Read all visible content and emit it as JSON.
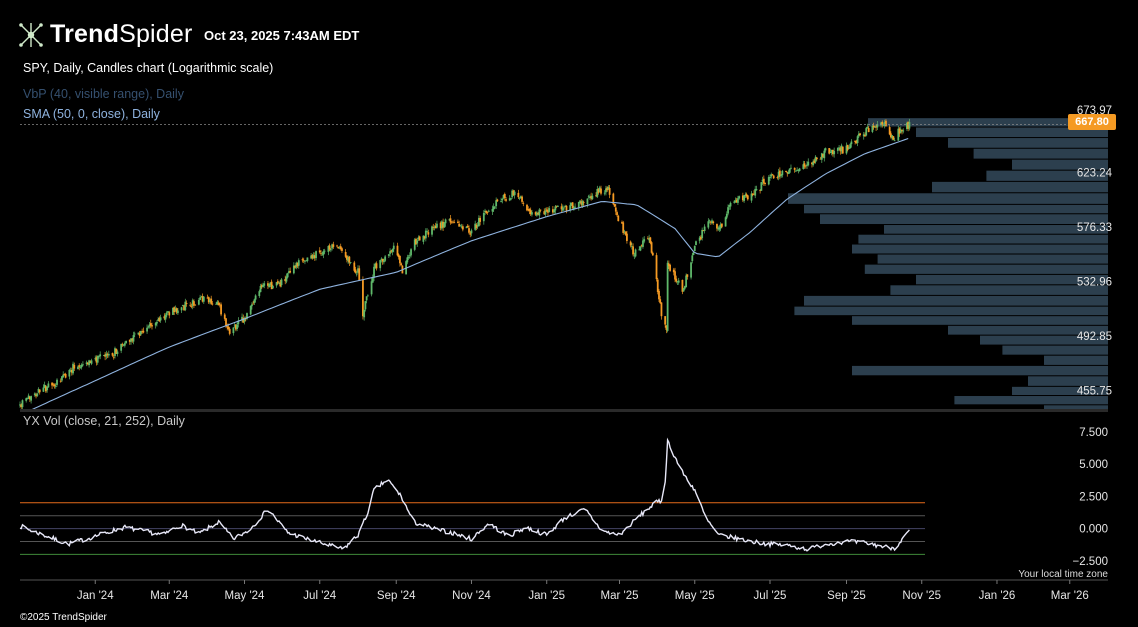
{
  "header": {
    "brand_bold": "Trend",
    "brand_light": "Spider",
    "timestamp": "Oct 23, 2025 7:43AM EDT",
    "chart_title": "SPY, Daily, Candles chart (Logarithmic scale)",
    "indicator_vbp": "VbP (40, visible range), Daily",
    "indicator_sma": "SMA (50, 0, close), Daily",
    "indicator_yxvol": "YX Vol (close, 21, 252), Daily",
    "timezone_note": "Your local time zone",
    "copyright": "©2025 TrendSpider"
  },
  "colors": {
    "background": "#000000",
    "candle_up": "#5fb86a",
    "candle_down": "#f59a23",
    "sma_line": "#8fb3df",
    "vbp_bars": "#2c3f4e",
    "vol_line": "#e8e8f8",
    "upper_band": "#e46a1a",
    "lower_band": "#3f8a3a",
    "current_price_badge": "#f59a23"
  },
  "chart_data": [
    {
      "type": "line",
      "subtype": "candlestick_log",
      "symbol": "SPY",
      "scale": "log",
      "ylim": [
        443,
        680
      ],
      "y_ticks": [
        "673.97",
        "623.24",
        "576.33",
        "532.96",
        "492.85",
        "455.75"
      ],
      "y_tick_values": [
        673.97,
        623.24,
        576.33,
        532.96,
        492.85,
        455.75
      ],
      "current_price_label": "667.80",
      "current_price": 667.8,
      "x_ticks": [
        "Jan '24",
        "Mar '24",
        "May '24",
        "Jul '24",
        "Sep '24",
        "Nov '24",
        "Jan '25",
        "Mar '25",
        "May '25",
        "Jul '25",
        "Sep '25",
        "Nov '25",
        "Jan '26",
        "Mar '26"
      ],
      "x_tick_dates": [
        "2024-01-01",
        "2024-03-01",
        "2024-05-01",
        "2024-07-01",
        "2024-09-01",
        "2024-11-01",
        "2025-01-01",
        "2025-03-01",
        "2025-05-01",
        "2025-07-01",
        "2025-09-01",
        "2025-11-01",
        "2026-01-01",
        "2026-03-01"
      ],
      "series": [
        {
          "x": [
            "2023-11-01",
            "2023-11-15",
            "2023-12-01",
            "2023-12-15",
            "2024-01-01",
            "2024-01-15",
            "2024-02-01",
            "2024-02-15",
            "2024-03-01",
            "2024-03-15",
            "2024-04-01",
            "2024-04-10",
            "2024-04-19",
            "2024-05-01",
            "2024-05-15",
            "2024-06-01",
            "2024-06-15",
            "2024-07-01",
            "2024-07-16",
            "2024-08-01",
            "2024-08-05",
            "2024-08-15",
            "2024-09-01",
            "2024-09-06",
            "2024-09-15",
            "2024-10-01",
            "2024-10-15",
            "2024-11-01",
            "2024-11-15",
            "2024-12-01",
            "2024-12-06",
            "2024-12-20",
            "2025-01-01",
            "2025-01-15",
            "2025-02-01",
            "2025-02-19",
            "2025-03-01",
            "2025-03-13",
            "2025-03-25",
            "2025-04-04",
            "2025-04-08",
            "2025-04-09",
            "2025-04-21",
            "2025-05-01",
            "2025-05-12",
            "2025-05-22",
            "2025-06-01",
            "2025-06-15",
            "2025-07-01",
            "2025-07-15",
            "2025-08-01",
            "2025-08-15",
            "2025-09-01",
            "2025-09-15",
            "2025-10-01",
            "2025-10-10",
            "2025-10-15",
            "2025-10-22"
          ],
          "y": [
            446,
            455,
            460,
            472,
            476,
            480,
            493,
            500,
            510,
            515,
            520,
            515,
            497,
            505,
            528,
            532,
            548,
            555,
            562,
            540,
            510,
            545,
            560,
            540,
            562,
            575,
            582,
            572,
            592,
            603,
            605,
            588,
            590,
            592,
            600,
            610,
            580,
            555,
            570,
            510,
            495,
            548,
            525,
            560,
            580,
            577,
            598,
            602,
            620,
            625,
            630,
            642,
            645,
            660,
            668,
            655,
            665,
            667.8
          ]
        }
      ],
      "sma": [
        {
          "x": [
            "2023-11-10",
            "2024-01-01",
            "2024-03-01",
            "2024-05-01",
            "2024-07-01",
            "2024-09-01",
            "2024-11-01",
            "2025-01-01",
            "2025-02-15",
            "2025-03-15",
            "2025-04-15",
            "2025-05-01",
            "2025-05-20",
            "2025-06-15",
            "2025-07-15",
            "2025-08-15",
            "2025-09-15",
            "2025-10-22"
          ],
          "y": [
            443,
            462,
            485,
            505,
            527,
            540,
            565,
            585,
            598,
            595,
            575,
            555,
            552,
            572,
            600,
            622,
            640,
            655
          ]
        }
      ],
      "volume_by_price": [
        {
          "price_low": 665,
          "price_high": 674,
          "volume": 0.75
        },
        {
          "price_low": 655,
          "price_high": 665,
          "volume": 0.6
        },
        {
          "price_low": 645,
          "price_high": 655,
          "volume": 0.5
        },
        {
          "price_low": 635,
          "price_high": 645,
          "volume": 0.42
        },
        {
          "price_low": 625,
          "price_high": 635,
          "volume": 0.3
        },
        {
          "price_low": 615,
          "price_high": 625,
          "volume": 0.38
        },
        {
          "price_low": 605,
          "price_high": 615,
          "volume": 0.55
        },
        {
          "price_low": 595,
          "price_high": 605,
          "volume": 1.0
        },
        {
          "price_low": 587,
          "price_high": 595,
          "volume": 0.95
        },
        {
          "price_low": 578,
          "price_high": 587,
          "volume": 0.9
        },
        {
          "price_low": 570,
          "price_high": 578,
          "volume": 0.7
        },
        {
          "price_low": 562,
          "price_high": 570,
          "volume": 0.78
        },
        {
          "price_low": 554,
          "price_high": 562,
          "volume": 0.8
        },
        {
          "price_low": 546,
          "price_high": 554,
          "volume": 0.72
        },
        {
          "price_low": 538,
          "price_high": 546,
          "volume": 0.76
        },
        {
          "price_low": 530,
          "price_high": 538,
          "volume": 0.6
        },
        {
          "price_low": 522,
          "price_high": 530,
          "volume": 0.68
        },
        {
          "price_low": 514,
          "price_high": 522,
          "volume": 0.95
        },
        {
          "price_low": 507,
          "price_high": 514,
          "volume": 0.98
        },
        {
          "price_low": 500,
          "price_high": 507,
          "volume": 0.8
        },
        {
          "price_low": 493,
          "price_high": 500,
          "volume": 0.5
        },
        {
          "price_low": 486,
          "price_high": 493,
          "volume": 0.4
        },
        {
          "price_low": 479,
          "price_high": 486,
          "volume": 0.33
        },
        {
          "price_low": 472,
          "price_high": 479,
          "volume": 0.2
        },
        {
          "price_low": 465,
          "price_high": 472,
          "volume": 0.8
        },
        {
          "price_low": 458,
          "price_high": 465,
          "volume": 0.25
        },
        {
          "price_low": 452,
          "price_high": 458,
          "volume": 0.3
        },
        {
          "price_low": 446,
          "price_high": 452,
          "volume": 0.48
        },
        {
          "price_low": 443,
          "price_high": 446,
          "volume": 0.2
        }
      ]
    },
    {
      "type": "line",
      "ylim": [
        -2.9,
        7.8
      ],
      "y_ticks": [
        "7.500",
        "5.000",
        "2.500",
        "0.000",
        "−2.500"
      ],
      "y_tick_values": [
        7.5,
        5.0,
        2.5,
        0.0,
        -2.5
      ],
      "bands": [
        {
          "value": 2.0,
          "color": "#e46a1a"
        },
        {
          "value": 1.0,
          "color": "#555555"
        },
        {
          "value": 0.0,
          "color": "#444466"
        },
        {
          "value": -1.0,
          "color": "#555555"
        },
        {
          "value": -2.0,
          "color": "#3f8a3a"
        }
      ],
      "series": [
        {
          "x": [
            "2023-11-01",
            "2023-11-20",
            "2023-12-10",
            "2023-12-25",
            "2024-01-10",
            "2024-01-25",
            "2024-02-10",
            "2024-02-25",
            "2024-03-10",
            "2024-03-25",
            "2024-04-10",
            "2024-04-22",
            "2024-05-05",
            "2024-05-20",
            "2024-06-05",
            "2024-06-20",
            "2024-07-05",
            "2024-07-20",
            "2024-08-01",
            "2024-08-08",
            "2024-08-14",
            "2024-08-25",
            "2024-09-05",
            "2024-09-15",
            "2024-10-01",
            "2024-10-15",
            "2024-11-01",
            "2024-11-15",
            "2024-12-01",
            "2024-12-15",
            "2025-01-01",
            "2025-01-15",
            "2025-02-01",
            "2025-02-15",
            "2025-03-01",
            "2025-03-15",
            "2025-03-30",
            "2025-04-06",
            "2025-04-09",
            "2025-04-20",
            "2025-05-01",
            "2025-05-10",
            "2025-05-20",
            "2025-06-01",
            "2025-06-15",
            "2025-07-01",
            "2025-07-15",
            "2025-08-01",
            "2025-08-15",
            "2025-09-01",
            "2025-09-15",
            "2025-10-01",
            "2025-10-10",
            "2025-10-22"
          ],
          "y": [
            0.2,
            -0.5,
            -1.2,
            -0.8,
            -0.3,
            0.1,
            -0.2,
            -0.5,
            0.3,
            -0.4,
            0.5,
            -0.8,
            -0.1,
            1.5,
            -0.3,
            -0.8,
            -1.2,
            -1.6,
            -0.5,
            1.0,
            3.0,
            3.8,
            2.5,
            0.5,
            0.0,
            -0.3,
            -0.8,
            0.4,
            -0.6,
            0.1,
            -0.5,
            0.8,
            1.5,
            -0.2,
            -0.5,
            0.8,
            2.0,
            2.2,
            6.8,
            4.5,
            3.0,
            0.8,
            -0.5,
            -0.7,
            -1.0,
            -1.2,
            -1.3,
            -1.6,
            -1.2,
            -1.0,
            -1.1,
            -1.4,
            -1.5,
            -0.2
          ]
        }
      ],
      "x_ticks": [
        "Jan '24",
        "Mar '24",
        "May '24",
        "Jul '24",
        "Sep '24",
        "Nov '24",
        "Jan '25",
        "Mar '25",
        "May '25",
        "Jul '25",
        "Sep '25",
        "Nov '25",
        "Jan '26",
        "Mar '26"
      ]
    }
  ]
}
